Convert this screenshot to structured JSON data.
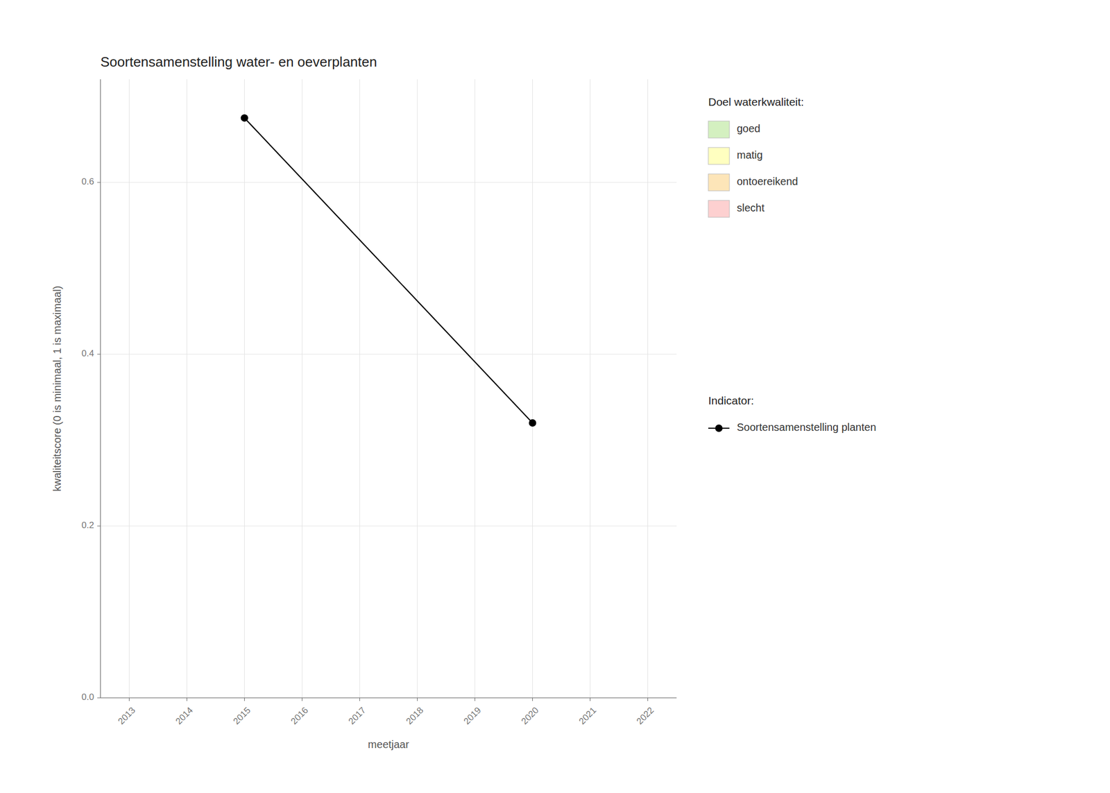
{
  "chart_data": {
    "type": "line",
    "title": "Soortensamenstelling water- en oeverplanten",
    "x_label": "meetjaar",
    "y_label": "kwaliteitscore (0 is minimaal, 1 is maximaal)",
    "x": [
      2015,
      2020
    ],
    "series": [
      {
        "name": "Soortensamenstelling planten",
        "color": "#000000",
        "marker": "circle",
        "line_style": "solid",
        "values": [
          0.675,
          0.32
        ]
      }
    ],
    "xlim": [
      2012.5,
      2022.5
    ],
    "xticks": [
      2013,
      2014,
      2015,
      2016,
      2017,
      2018,
      2019,
      2020,
      2021,
      2022
    ],
    "ylim": [
      0.0,
      0.72
    ],
    "yticks": [
      {
        "value": 0.0,
        "label": "0.0"
      },
      {
        "value": 0.2,
        "label": "0.2"
      },
      {
        "value": 0.4,
        "label": "0.4"
      },
      {
        "value": 0.6,
        "label": "0.6"
      }
    ],
    "grid": true,
    "legend": "right",
    "legend_title": "Indicator:",
    "annotations": [
      {
        "text": "Doel waterkwaliteit:",
        "items": [
          {
            "label": "goed",
            "color": "#d4f0c0"
          },
          {
            "label": "matig",
            "color": "#ffffc0"
          },
          {
            "label": "ontoereikend",
            "color": "#fde5b8"
          },
          {
            "label": "slecht",
            "color": "#fdd0d0"
          }
        ]
      }
    ]
  }
}
